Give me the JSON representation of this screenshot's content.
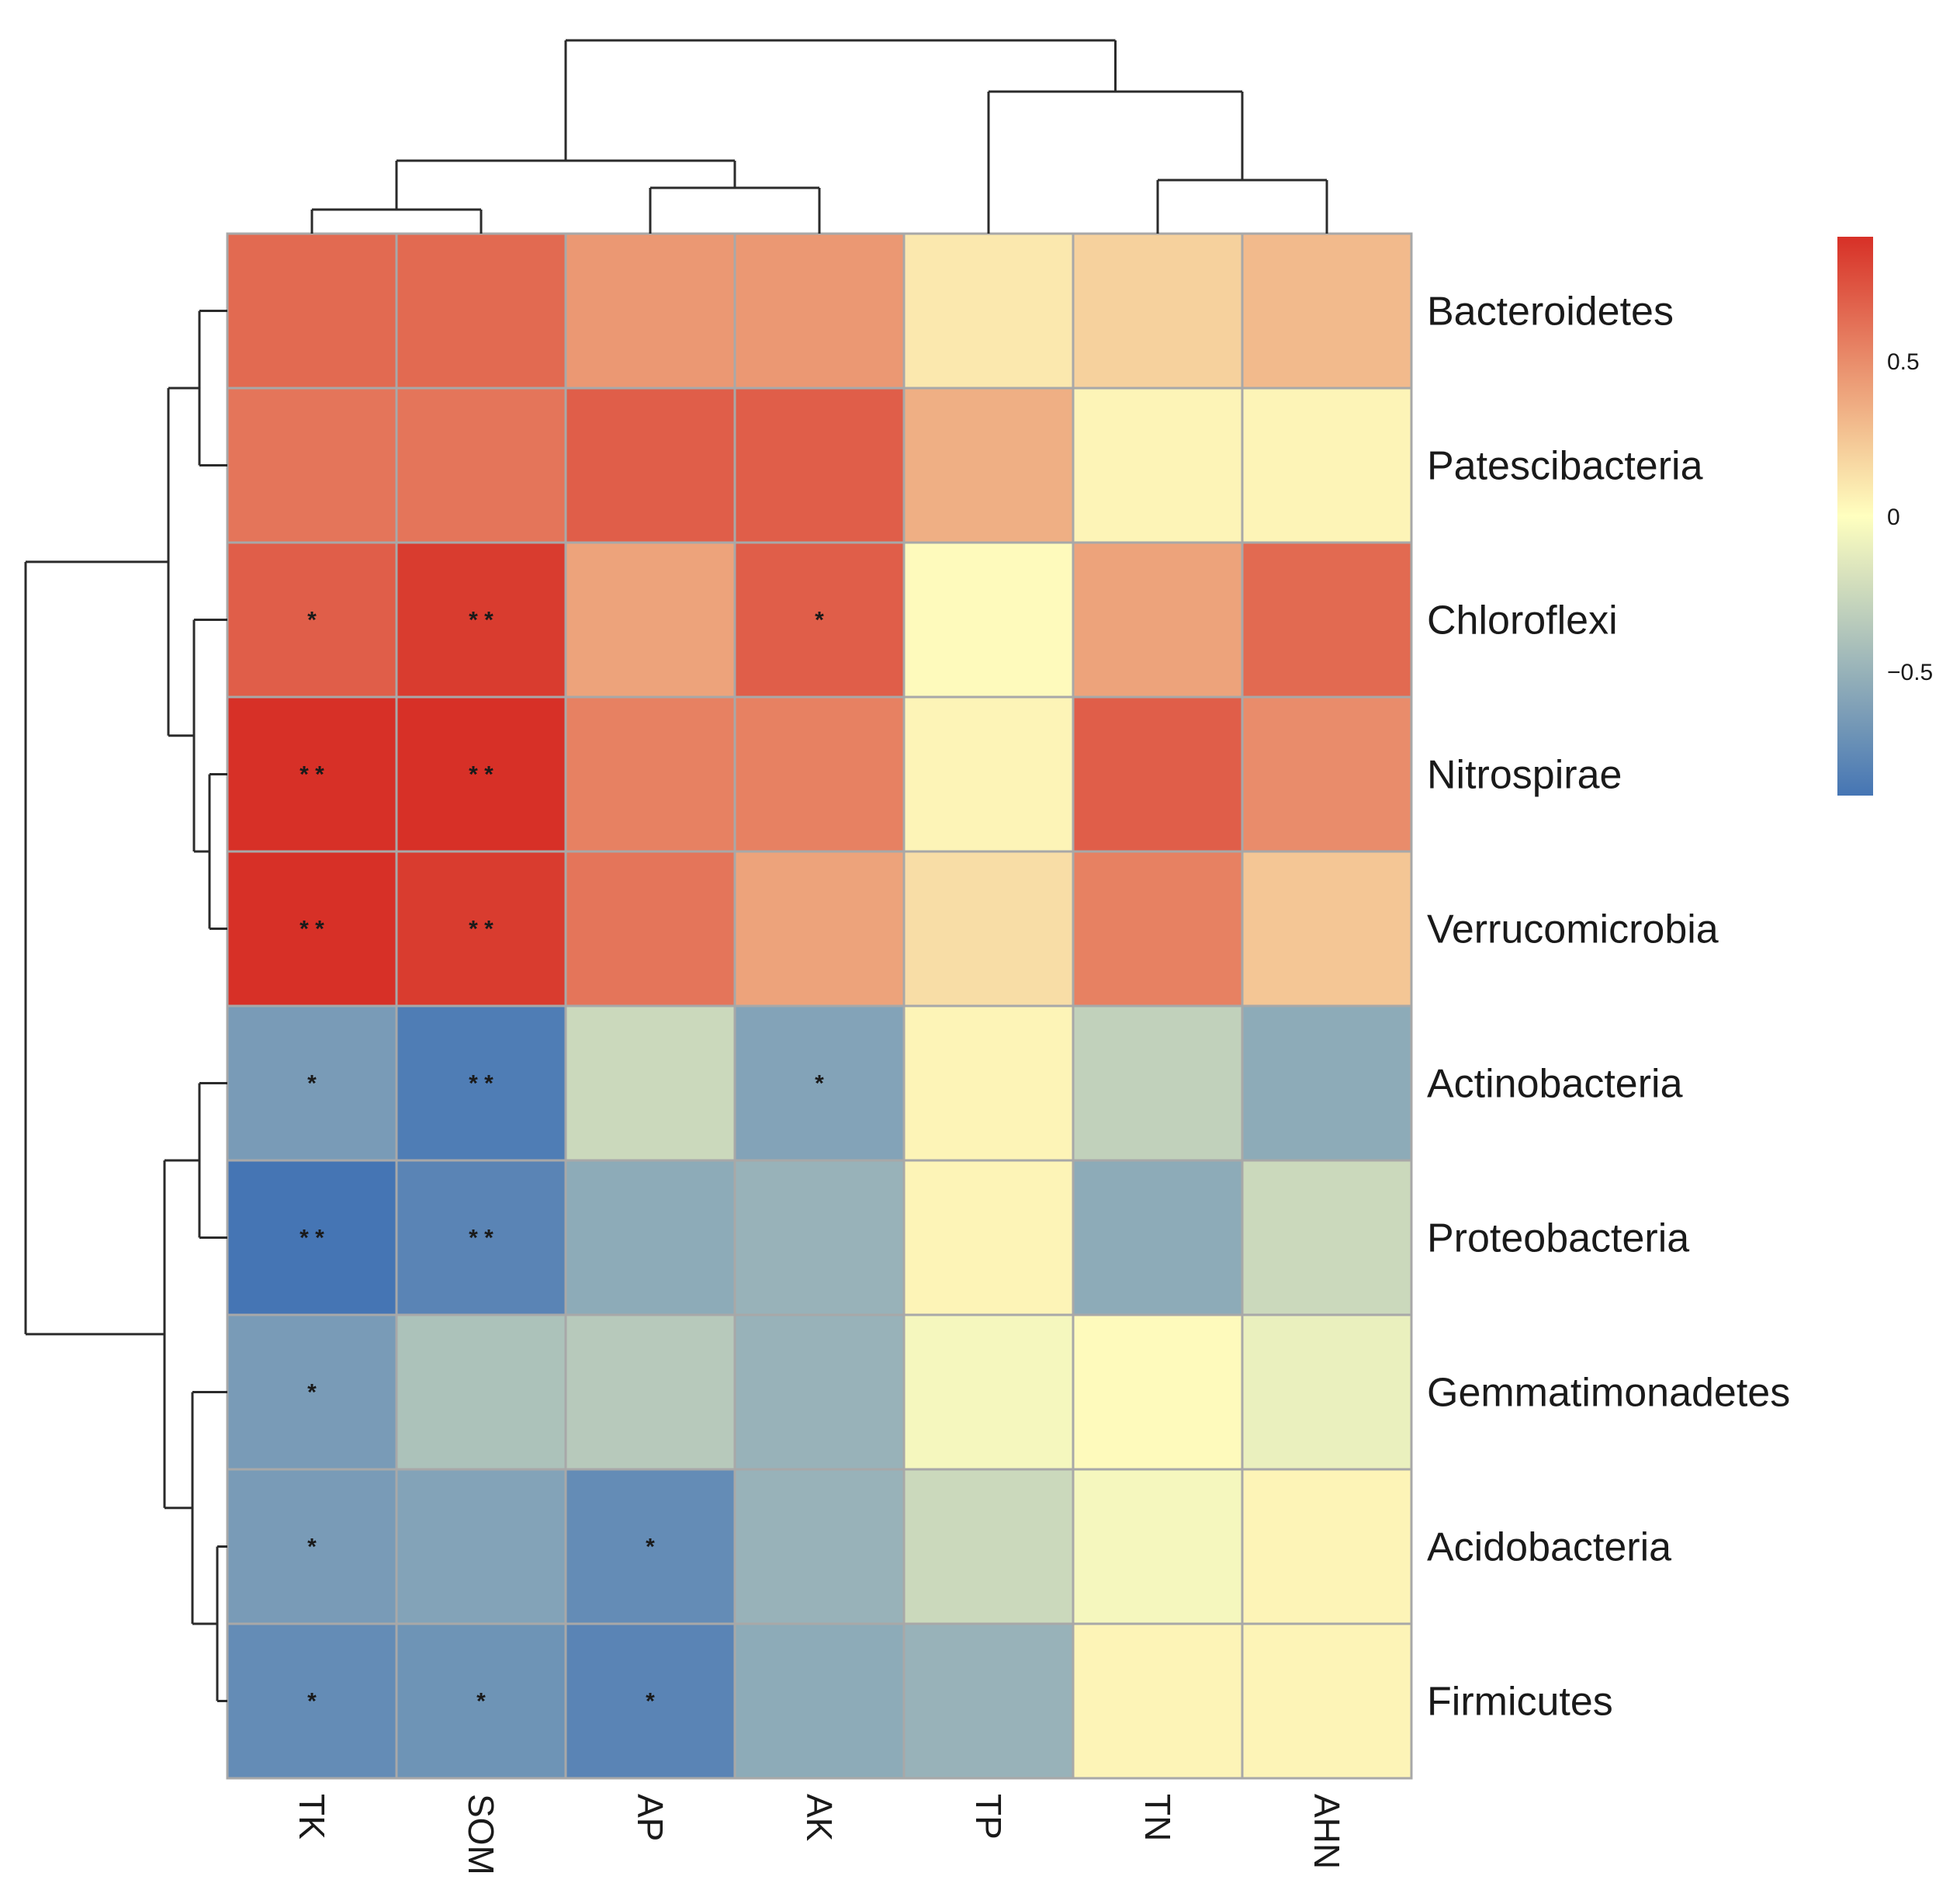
{
  "chart_data": {
    "type": "heatmap",
    "title": "",
    "xlabel": "",
    "ylabel": "",
    "rows": [
      "Bacteroidetes",
      "Patescibacteria",
      "Chloroflexi",
      "Nitrospirae",
      "Verrucomicrobia",
      "Actinobacteria",
      "Proteobacteria",
      "Gemmatimonadetes",
      "Acidobacteria",
      "Firmicutes"
    ],
    "columns": [
      "TK",
      "SOM",
      "AP",
      "AK",
      "TP",
      "TN",
      "AHN"
    ],
    "values": [
      [
        0.65,
        0.65,
        0.45,
        0.45,
        0.1,
        0.2,
        0.3
      ],
      [
        0.6,
        0.6,
        0.7,
        0.7,
        0.35,
        0.05,
        0.05
      ],
      [
        0.7,
        0.85,
        0.4,
        0.7,
        0.02,
        0.4,
        0.65
      ],
      [
        0.9,
        0.9,
        0.55,
        0.55,
        0.05,
        0.7,
        0.5
      ],
      [
        0.9,
        0.85,
        0.6,
        0.4,
        0.15,
        0.55,
        0.25
      ],
      [
        -0.65,
        -0.85,
        -0.25,
        -0.6,
        0.05,
        -0.3,
        -0.55
      ],
      [
        -0.9,
        -0.8,
        -0.55,
        -0.5,
        0.05,
        -0.55,
        -0.25
      ],
      [
        -0.65,
        -0.4,
        -0.35,
        -0.5,
        -0.05,
        0.02,
        -0.1
      ],
      [
        -0.65,
        -0.6,
        -0.75,
        -0.5,
        -0.25,
        -0.05,
        0.05
      ],
      [
        -0.75,
        -0.7,
        -0.8,
        -0.55,
        -0.5,
        0.05,
        0.05
      ]
    ],
    "significance": [
      [
        "",
        "",
        "",
        "",
        "",
        "",
        ""
      ],
      [
        "",
        "",
        "",
        "",
        "",
        "",
        ""
      ],
      [
        "*",
        "**",
        "",
        "*",
        "",
        "",
        ""
      ],
      [
        "**",
        "**",
        "",
        "",
        "",
        "",
        ""
      ],
      [
        "**",
        "**",
        "",
        "",
        "",
        "",
        ""
      ],
      [
        "*",
        "**",
        "",
        "*",
        "",
        "",
        ""
      ],
      [
        "**",
        "**",
        "",
        "",
        "",
        "",
        ""
      ],
      [
        "*",
        "",
        "",
        "",
        "",
        "",
        ""
      ],
      [
        "*",
        "",
        "*",
        "",
        "",
        "",
        ""
      ],
      [
        "*",
        "*",
        "*",
        "",
        "",
        "",
        ""
      ]
    ],
    "color_scale": {
      "range": [
        -0.9,
        0.9
      ],
      "low_color": "#4575b4",
      "mid_color": "#ffffbf",
      "high_color": "#d73027",
      "ticks": [
        {
          "value": 0.5,
          "label": "0.5"
        },
        {
          "value": 0,
          "label": "0"
        },
        {
          "value": -0.5,
          "label": "−0.5"
        }
      ]
    },
    "legend_position": "top-right",
    "row_dendrogram": true,
    "column_dendrogram": true
  }
}
